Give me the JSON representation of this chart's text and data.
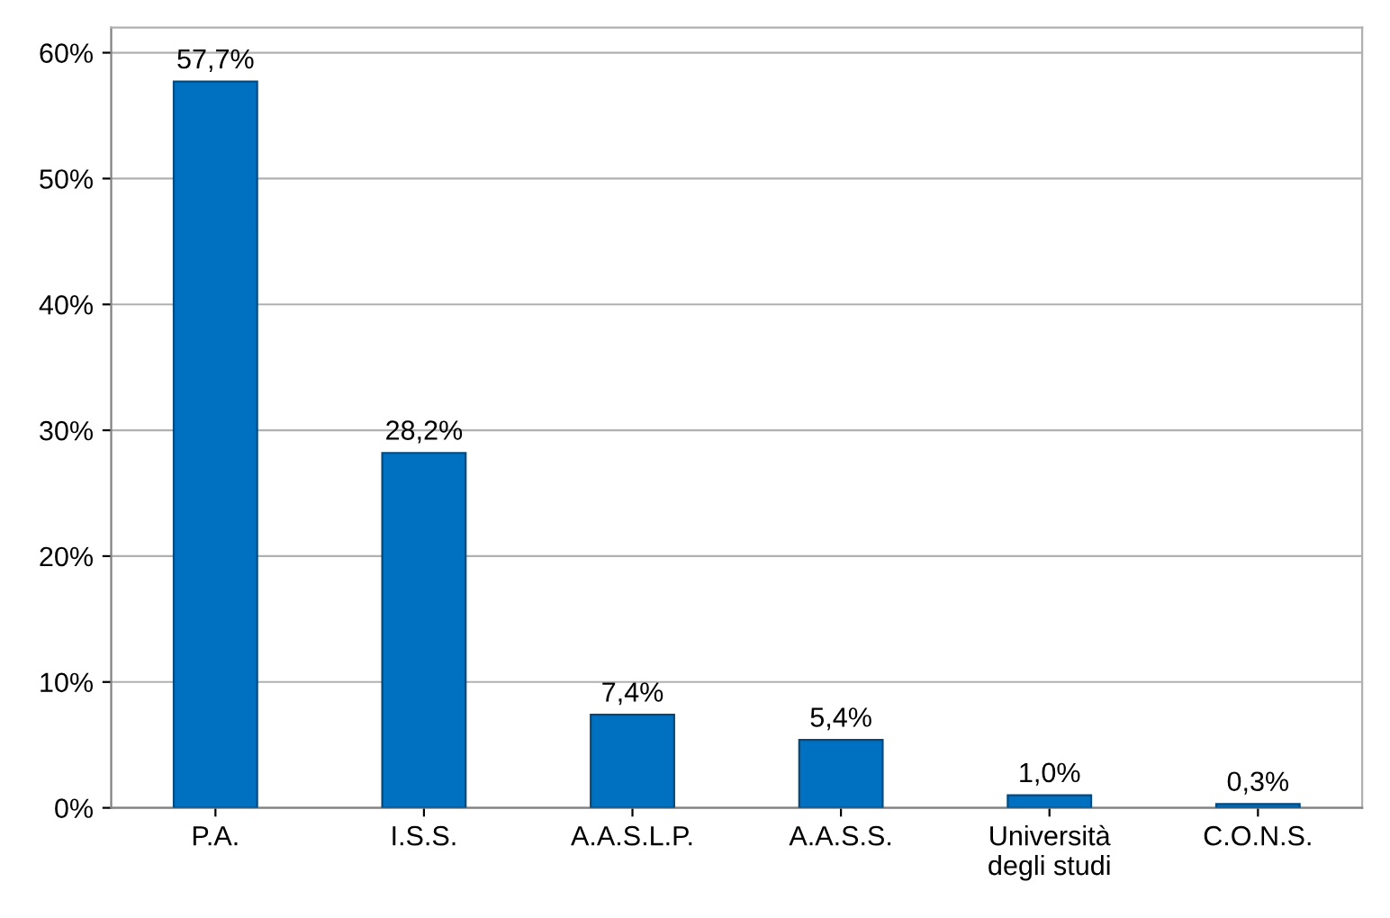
{
  "chart_data": {
    "type": "bar",
    "categories": [
      "P.A.",
      "I.S.S.",
      "A.A.S.L.P.",
      "A.A.S.S.",
      "Università\ndegli studi",
      "C.O.N.S."
    ],
    "values": [
      57.7,
      28.2,
      7.4,
      5.4,
      1.0,
      0.3
    ],
    "value_labels": [
      "57,7%",
      "28,2%",
      "7,4%",
      "5,4%",
      "1,0%",
      "0,3%"
    ],
    "color": "#0070c0",
    "ylim": [
      0,
      62
    ],
    "yticks": [
      {
        "value": 0,
        "label": "0%"
      },
      {
        "value": 10,
        "label": "10%"
      },
      {
        "value": 20,
        "label": "20%"
      },
      {
        "value": 30,
        "label": "30%"
      },
      {
        "value": 40,
        "label": "40%"
      },
      {
        "value": 50,
        "label": "50%"
      },
      {
        "value": 60,
        "label": "60%"
      }
    ],
    "grid": "y",
    "legend": false
  }
}
